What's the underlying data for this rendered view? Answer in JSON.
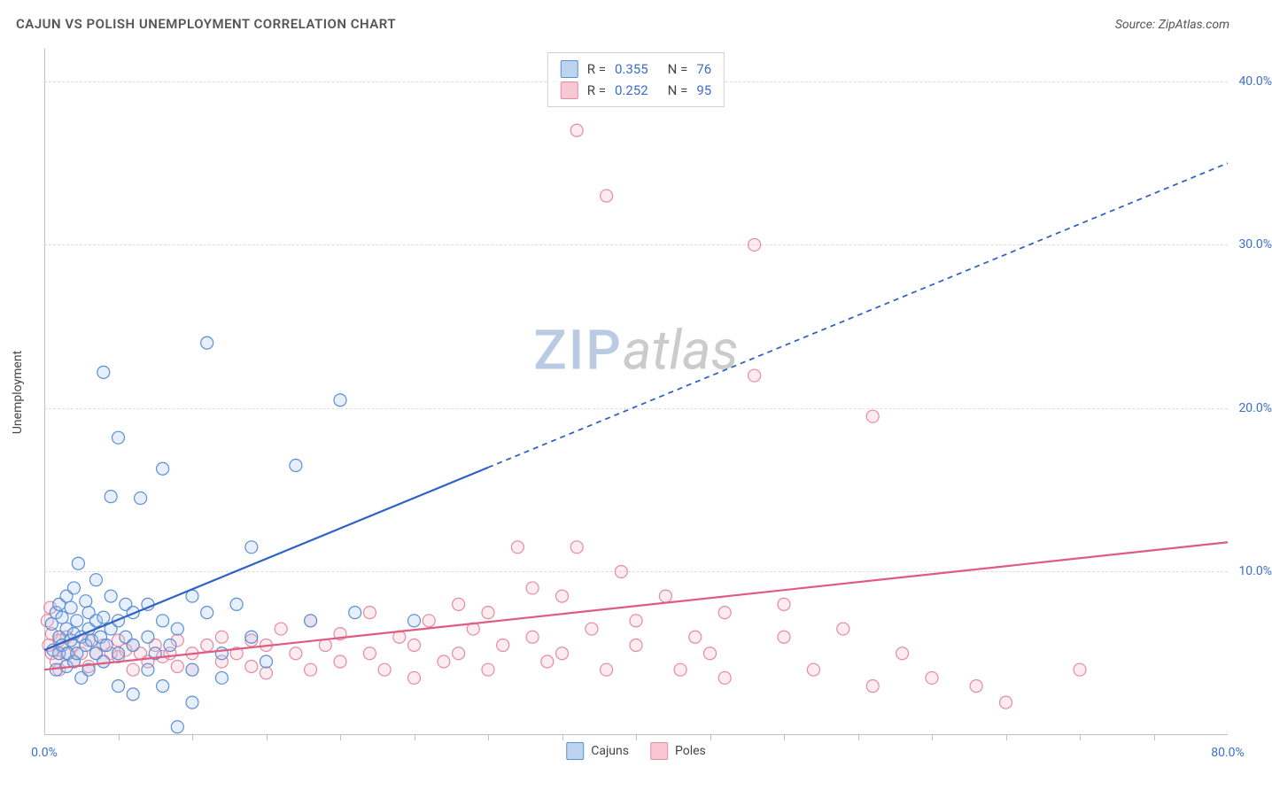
{
  "header": {
    "title": "CAJUN VS POLISH UNEMPLOYMENT CORRELATION CHART",
    "source": "Source: ZipAtlas.com"
  },
  "watermark": {
    "zip": "ZIP",
    "atlas": "atlas"
  },
  "chart": {
    "type": "scatter",
    "ylabel": "Unemployment",
    "xlim": [
      0,
      80
    ],
    "ylim": [
      0,
      42
    ],
    "xtick_labels": [
      {
        "x": 0,
        "label": "0.0%"
      },
      {
        "x": 80,
        "label": "80.0%"
      }
    ],
    "xticks_minor": [
      5,
      10,
      15,
      20,
      25,
      30,
      35,
      40,
      45,
      50,
      55,
      60,
      65,
      70,
      75
    ],
    "ytick_labels": [
      {
        "y": 10,
        "label": "10.0%"
      },
      {
        "y": 20,
        "label": "20.0%"
      },
      {
        "y": 30,
        "label": "30.0%"
      },
      {
        "y": 40,
        "label": "40.0%"
      }
    ],
    "grid_color": "#dcdcdc",
    "axis_color": "#bfbfbf",
    "tick_label_color": "#3b6fc9",
    "background_color": "#ffffff",
    "marker_radius": 7,
    "marker_stroke_width": 1.2,
    "marker_fill_opacity": 0.28,
    "series": {
      "cajuns": {
        "label": "Cajuns",
        "color_stroke": "#5a8fd6",
        "color_fill": "#a9c6ec",
        "swatch_fill": "#bcd4f0",
        "swatch_stroke": "#5a8fd6",
        "R": "0.355",
        "N": "76",
        "trend": {
          "color": "#2f62c4",
          "width": 2.2,
          "solid_to_x": 30,
          "start": {
            "x": 0,
            "y": 5.2
          },
          "end": {
            "x": 80,
            "y": 35.0
          }
        },
        "points": [
          [
            0.5,
            6.8
          ],
          [
            0.6,
            5.2
          ],
          [
            0.8,
            7.5
          ],
          [
            0.8,
            4.0
          ],
          [
            1.0,
            6.0
          ],
          [
            1.0,
            8.0
          ],
          [
            1.0,
            5.0
          ],
          [
            1.2,
            5.5
          ],
          [
            1.2,
            7.2
          ],
          [
            1.5,
            6.5
          ],
          [
            1.5,
            4.2
          ],
          [
            1.5,
            8.5
          ],
          [
            1.6,
            5.0
          ],
          [
            1.8,
            7.8
          ],
          [
            1.8,
            5.8
          ],
          [
            2.0,
            6.2
          ],
          [
            2.0,
            4.5
          ],
          [
            2.0,
            9.0
          ],
          [
            2.2,
            5.0
          ],
          [
            2.2,
            7.0
          ],
          [
            2.3,
            10.5
          ],
          [
            2.5,
            6.0
          ],
          [
            2.5,
            3.5
          ],
          [
            2.8,
            5.5
          ],
          [
            2.8,
            8.2
          ],
          [
            3.0,
            6.5
          ],
          [
            3.0,
            4.0
          ],
          [
            3.0,
            7.5
          ],
          [
            3.2,
            5.8
          ],
          [
            3.5,
            7.0
          ],
          [
            3.5,
            9.5
          ],
          [
            3.5,
            5.0
          ],
          [
            3.8,
            6.0
          ],
          [
            4.0,
            7.2
          ],
          [
            4.0,
            4.5
          ],
          [
            4.0,
            22.2
          ],
          [
            4.2,
            5.5
          ],
          [
            4.5,
            6.5
          ],
          [
            4.5,
            8.5
          ],
          [
            4.5,
            14.6
          ],
          [
            5.0,
            7.0
          ],
          [
            5.0,
            5.0
          ],
          [
            5.0,
            18.2
          ],
          [
            5.0,
            3.0
          ],
          [
            5.5,
            6.0
          ],
          [
            5.5,
            8.0
          ],
          [
            6.0,
            5.5
          ],
          [
            6.0,
            7.5
          ],
          [
            6.0,
            2.5
          ],
          [
            6.5,
            14.5
          ],
          [
            7.0,
            6.0
          ],
          [
            7.0,
            8.0
          ],
          [
            7.0,
            4.0
          ],
          [
            7.5,
            5.0
          ],
          [
            8.0,
            7.0
          ],
          [
            8.0,
            3.0
          ],
          [
            8.0,
            16.3
          ],
          [
            8.5,
            5.5
          ],
          [
            9.0,
            6.5
          ],
          [
            9.0,
            0.5
          ],
          [
            10.0,
            8.5
          ],
          [
            10.0,
            4.0
          ],
          [
            10.0,
            2.0
          ],
          [
            11.0,
            7.5
          ],
          [
            11.0,
            24.0
          ],
          [
            12.0,
            5.0
          ],
          [
            12.0,
            3.5
          ],
          [
            13.0,
            8.0
          ],
          [
            14.0,
            6.0
          ],
          [
            14.0,
            11.5
          ],
          [
            15.0,
            4.5
          ],
          [
            17.0,
            16.5
          ],
          [
            18.0,
            7.0
          ],
          [
            20.0,
            20.5
          ],
          [
            21.0,
            7.5
          ],
          [
            25.0,
            7.0
          ]
        ]
      },
      "poles": {
        "label": "Poles",
        "color_stroke": "#e68aa3",
        "color_fill": "#f4b9c9",
        "swatch_fill": "#f7c7d4",
        "swatch_stroke": "#e68aa3",
        "R": "0.252",
        "N": "95",
        "trend": {
          "color": "#e05b81",
          "width": 2.2,
          "solid_to_x": 80,
          "start": {
            "x": 0,
            "y": 4.0
          },
          "end": {
            "x": 80,
            "y": 11.8
          }
        },
        "points": [
          [
            0.2,
            7.0
          ],
          [
            0.3,
            5.5
          ],
          [
            0.4,
            7.8
          ],
          [
            0.5,
            5.0
          ],
          [
            0.5,
            6.2
          ],
          [
            0.8,
            4.5
          ],
          [
            1.0,
            5.8
          ],
          [
            1.0,
            4.0
          ],
          [
            1.5,
            5.0
          ],
          [
            1.5,
            6.0
          ],
          [
            2.0,
            4.5
          ],
          [
            2.0,
            5.5
          ],
          [
            2.5,
            5.0
          ],
          [
            3.0,
            4.2
          ],
          [
            3.0,
            5.8
          ],
          [
            3.5,
            5.0
          ],
          [
            4.0,
            4.5
          ],
          [
            4.0,
            5.5
          ],
          [
            4.5,
            5.0
          ],
          [
            5.0,
            4.8
          ],
          [
            5.0,
            5.8
          ],
          [
            5.5,
            5.2
          ],
          [
            6.0,
            4.0
          ],
          [
            6.0,
            5.5
          ],
          [
            6.5,
            5.0
          ],
          [
            7.0,
            4.5
          ],
          [
            7.5,
            5.5
          ],
          [
            8.0,
            4.8
          ],
          [
            8.5,
            5.0
          ],
          [
            9.0,
            4.2
          ],
          [
            9.0,
            5.8
          ],
          [
            10.0,
            5.0
          ],
          [
            10.0,
            4.0
          ],
          [
            11.0,
            5.5
          ],
          [
            12.0,
            4.5
          ],
          [
            12.0,
            6.0
          ],
          [
            13.0,
            5.0
          ],
          [
            14.0,
            4.2
          ],
          [
            14.0,
            5.8
          ],
          [
            15.0,
            5.5
          ],
          [
            15.0,
            3.8
          ],
          [
            16.0,
            6.5
          ],
          [
            17.0,
            5.0
          ],
          [
            18.0,
            4.0
          ],
          [
            18.0,
            7.0
          ],
          [
            19.0,
            5.5
          ],
          [
            20.0,
            4.5
          ],
          [
            20.0,
            6.2
          ],
          [
            22.0,
            5.0
          ],
          [
            22.0,
            7.5
          ],
          [
            23.0,
            4.0
          ],
          [
            24.0,
            6.0
          ],
          [
            25.0,
            5.5
          ],
          [
            25.0,
            3.5
          ],
          [
            26.0,
            7.0
          ],
          [
            27.0,
            4.5
          ],
          [
            28.0,
            5.0
          ],
          [
            28.0,
            8.0
          ],
          [
            29.0,
            6.5
          ],
          [
            30.0,
            4.0
          ],
          [
            30.0,
            7.5
          ],
          [
            31.0,
            5.5
          ],
          [
            32.0,
            11.5
          ],
          [
            33.0,
            6.0
          ],
          [
            33.0,
            9.0
          ],
          [
            34.0,
            4.5
          ],
          [
            35.0,
            5.0
          ],
          [
            35.0,
            8.5
          ],
          [
            36.0,
            11.5
          ],
          [
            36.0,
            37.0
          ],
          [
            37.0,
            6.5
          ],
          [
            38.0,
            4.0
          ],
          [
            38.0,
            33.0
          ],
          [
            39.0,
            10.0
          ],
          [
            40.0,
            7.0
          ],
          [
            40.0,
            5.5
          ],
          [
            42.0,
            8.5
          ],
          [
            43.0,
            4.0
          ],
          [
            44.0,
            6.0
          ],
          [
            45.0,
            5.0
          ],
          [
            46.0,
            7.5
          ],
          [
            46.0,
            3.5
          ],
          [
            48.0,
            22.0
          ],
          [
            48.0,
            30.0
          ],
          [
            50.0,
            6.0
          ],
          [
            50.0,
            8.0
          ],
          [
            52.0,
            4.0
          ],
          [
            54.0,
            6.5
          ],
          [
            56.0,
            3.0
          ],
          [
            56.0,
            19.5
          ],
          [
            58.0,
            5.0
          ],
          [
            60.0,
            3.5
          ],
          [
            63.0,
            3.0
          ],
          [
            65.0,
            2.0
          ],
          [
            70.0,
            4.0
          ]
        ]
      }
    }
  }
}
